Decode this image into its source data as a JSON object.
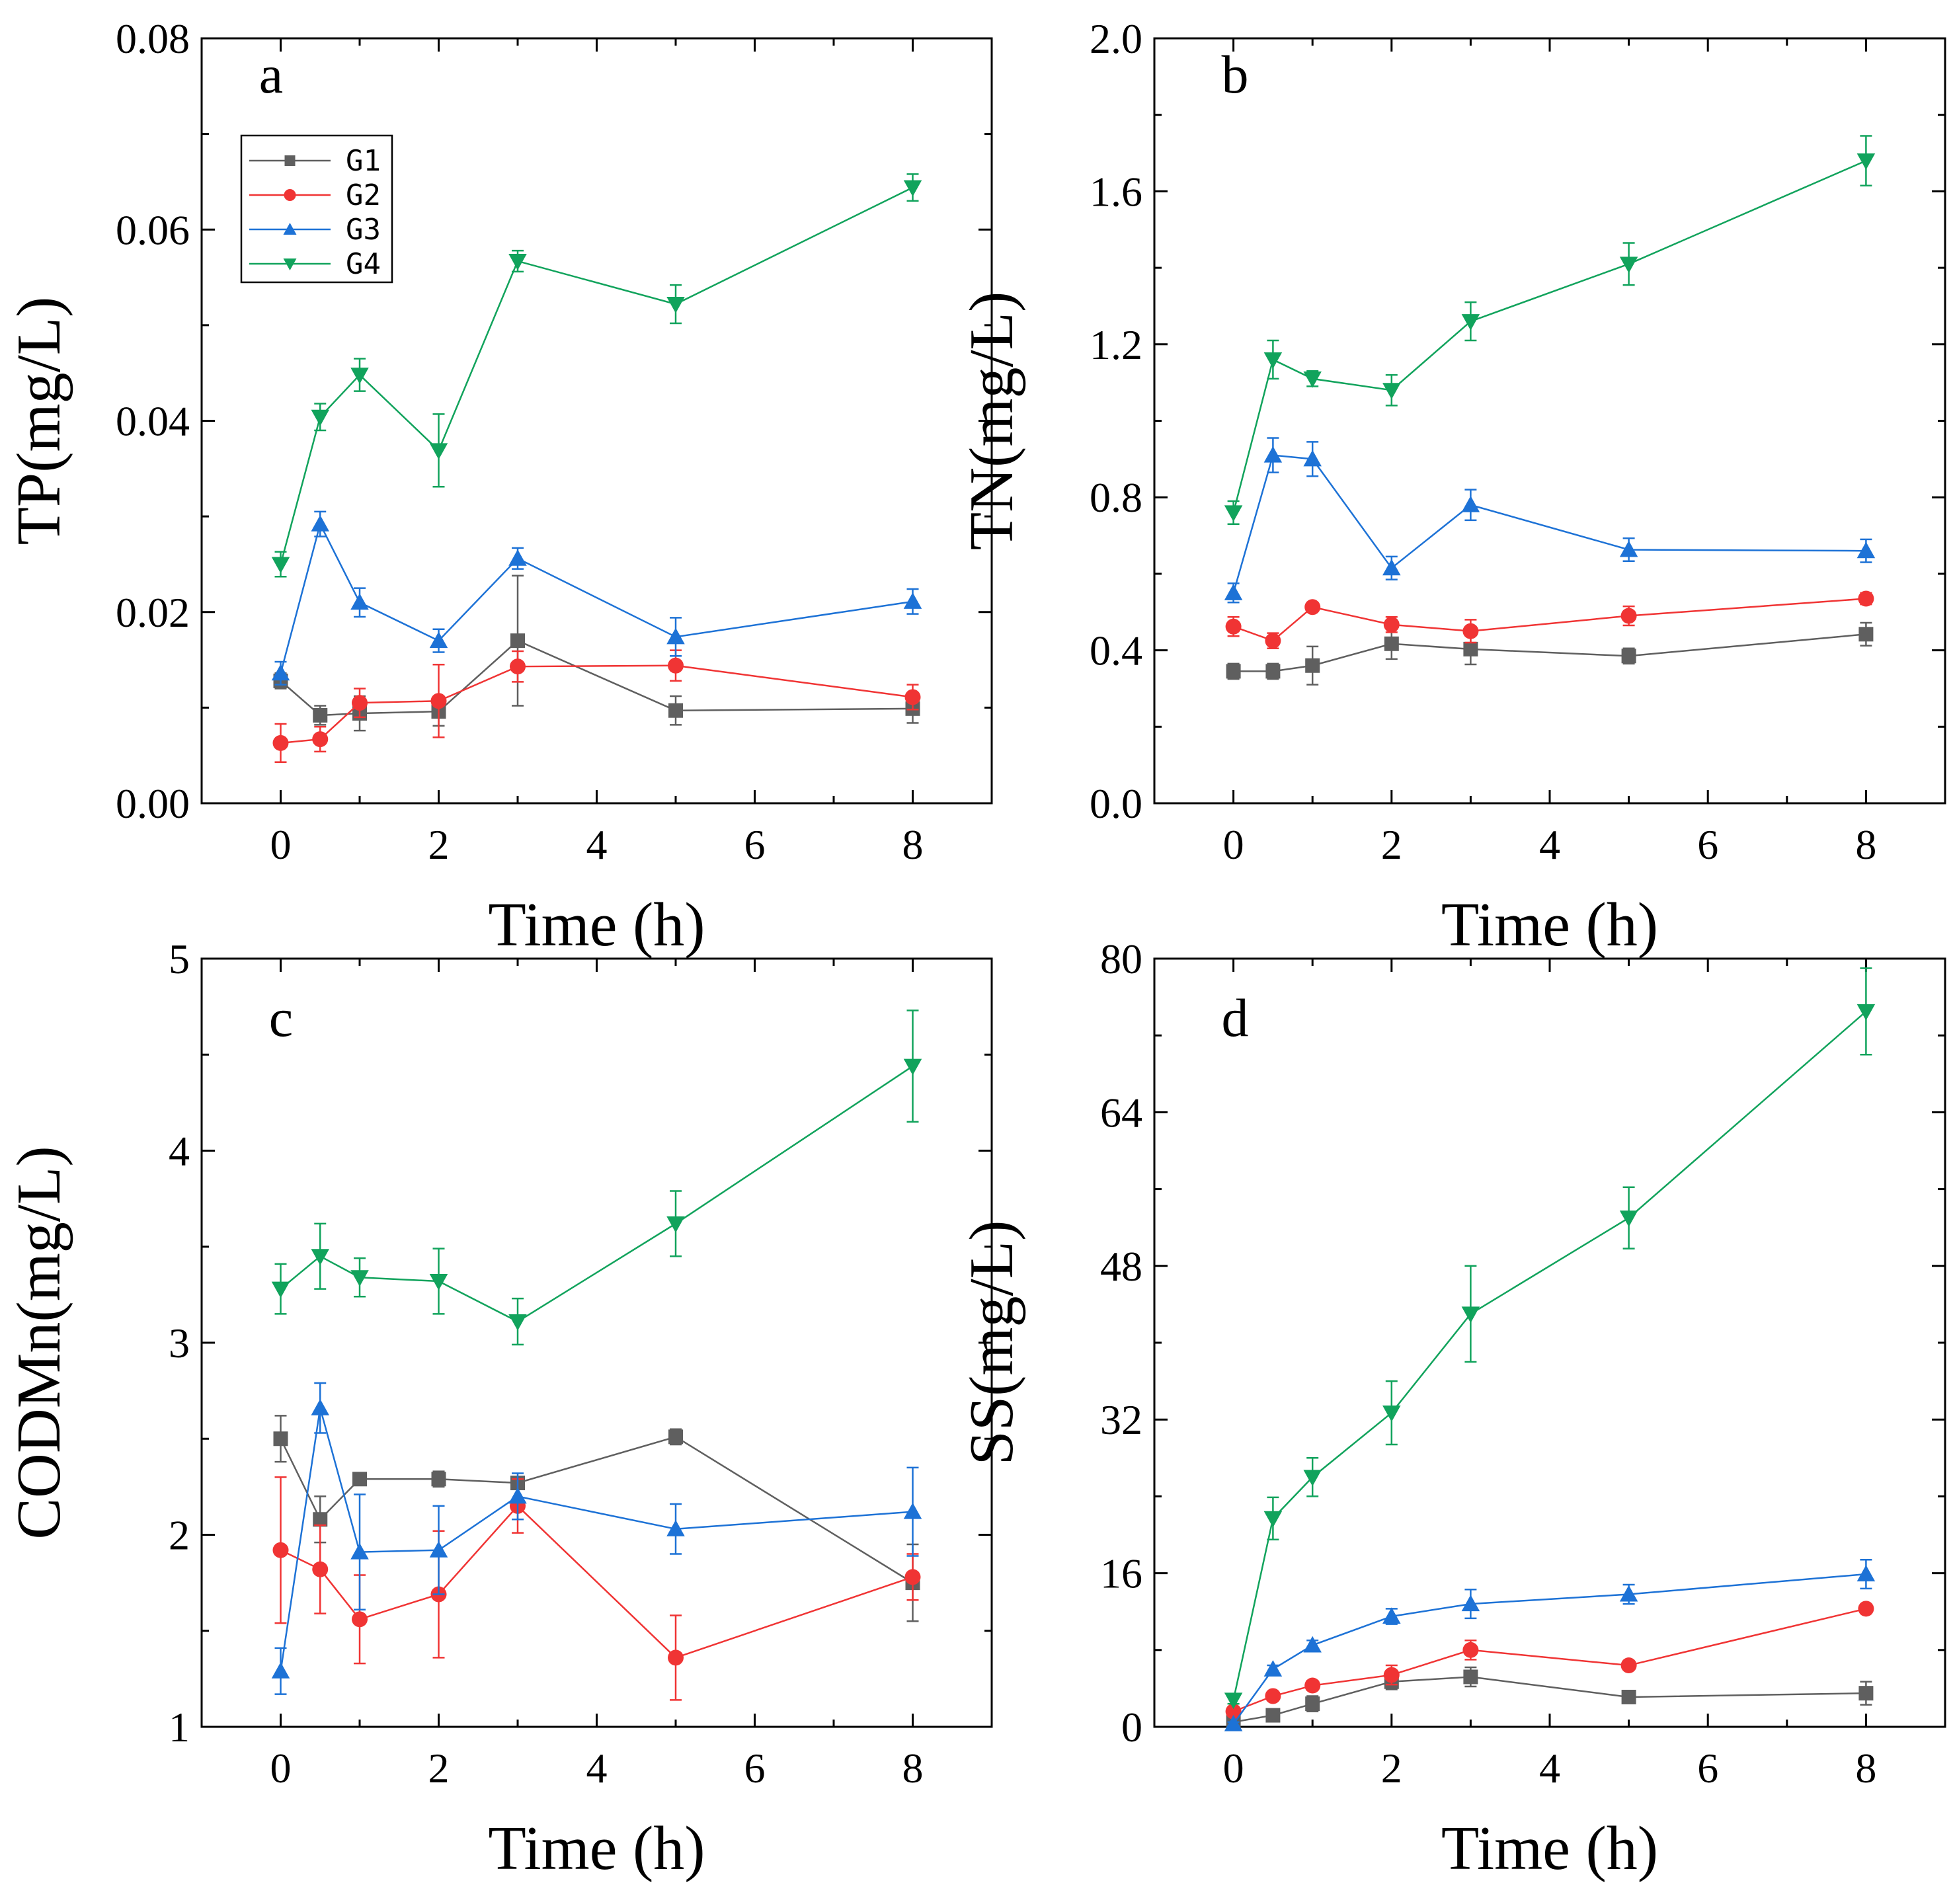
{
  "figure": {
    "colors": {
      "G1": "#5f5f5f",
      "G2": "#f03434",
      "G3": "#1d72d6",
      "G4": "#11a35c"
    },
    "markers": {
      "G1": "square",
      "G2": "circle",
      "G3": "triangle-up",
      "G4": "triangle-down"
    }
  },
  "chart_data": [
    {
      "type": "line",
      "panel": "a",
      "xlabel": "Time (h)",
      "ylabel": "TP(mg/L)",
      "xlim": [
        -1,
        9
      ],
      "ylim": [
        0,
        0.08
      ],
      "xticks": [
        0,
        2,
        4,
        6,
        8
      ],
      "yticks": [
        0.0,
        0.02,
        0.04,
        0.06,
        0.08
      ],
      "ytick_labels": [
        "0.00",
        "0.02",
        "0.04",
        "0.06",
        "0.08"
      ],
      "legend": {
        "position": "top-left",
        "entries": [
          "G1",
          "G2",
          "G3",
          "G4"
        ]
      },
      "x": [
        0,
        0.5,
        1,
        2,
        3,
        5,
        8
      ],
      "series": [
        {
          "name": "G1",
          "values": [
            0.0128,
            0.0092,
            0.0094,
            0.0096,
            0.017,
            0.0097,
            0.0099
          ],
          "errors": [
            0.0008,
            0.001,
            0.0018,
            0.0015,
            0.0068,
            0.0015,
            0.0015
          ]
        },
        {
          "name": "G2",
          "values": [
            0.0063,
            0.0067,
            0.0105,
            0.0107,
            0.0143,
            0.0144,
            0.0111
          ],
          "errors": [
            0.002,
            0.0013,
            0.0015,
            0.0038,
            0.0016,
            0.0016,
            0.0013
          ]
        },
        {
          "name": "G3",
          "values": [
            0.0136,
            0.0292,
            0.021,
            0.017,
            0.0256,
            0.0174,
            0.0211
          ],
          "errors": [
            0.0012,
            0.0013,
            0.0015,
            0.0012,
            0.0011,
            0.002,
            0.0013
          ]
        },
        {
          "name": "G4",
          "values": [
            0.025,
            0.0404,
            0.0448,
            0.0369,
            0.0567,
            0.0522,
            0.0644
          ],
          "errors": [
            0.0013,
            0.0014,
            0.0017,
            0.0038,
            0.0011,
            0.002,
            0.0014
          ]
        }
      ]
    },
    {
      "type": "line",
      "panel": "b",
      "xlabel": "Time (h)",
      "ylabel": "TN(mg/L)",
      "xlim": [
        -1,
        9
      ],
      "ylim": [
        0,
        2.0
      ],
      "xticks": [
        0,
        2,
        4,
        6,
        8
      ],
      "yticks": [
        0.0,
        0.4,
        0.8,
        1.2,
        1.6,
        2.0
      ],
      "ytick_labels": [
        "0.0",
        "0.4",
        "0.8",
        "1.2",
        "1.6",
        "2.0"
      ],
      "x": [
        0,
        0.5,
        1,
        2,
        3,
        5,
        8
      ],
      "series": [
        {
          "name": "G1",
          "values": [
            0.345,
            0.345,
            0.36,
            0.417,
            0.403,
            0.385,
            0.442
          ],
          "errors": [
            0.02,
            0.02,
            0.05,
            0.04,
            0.04,
            0.02,
            0.03
          ]
        },
        {
          "name": "G2",
          "values": [
            0.462,
            0.425,
            0.513,
            0.467,
            0.45,
            0.49,
            0.535
          ],
          "errors": [
            0.025,
            0.02,
            0.01,
            0.02,
            0.03,
            0.025,
            0.015
          ]
        },
        {
          "name": "G3",
          "values": [
            0.55,
            0.91,
            0.9,
            0.615,
            0.78,
            0.663,
            0.66
          ],
          "errors": [
            0.025,
            0.045,
            0.045,
            0.03,
            0.04,
            0.03,
            0.03
          ]
        },
        {
          "name": "G4",
          "values": [
            0.76,
            1.16,
            1.11,
            1.08,
            1.26,
            1.41,
            1.68
          ],
          "errors": [
            0.03,
            0.05,
            0.02,
            0.04,
            0.05,
            0.055,
            0.065
          ]
        }
      ]
    },
    {
      "type": "line",
      "panel": "c",
      "xlabel": "Time (h)",
      "ylabel": "CODMn(mg/L)",
      "xlim": [
        -1,
        9
      ],
      "ylim": [
        1,
        5
      ],
      "xticks": [
        0,
        2,
        4,
        6,
        8
      ],
      "yticks": [
        1,
        2,
        3,
        4,
        5
      ],
      "ytick_labels": [
        "1",
        "2",
        "3",
        "4",
        "5"
      ],
      "x": [
        0,
        0.5,
        1,
        2,
        3,
        5,
        8
      ],
      "series": [
        {
          "name": "G1",
          "values": [
            2.5,
            2.08,
            2.29,
            2.29,
            2.27,
            2.51,
            1.75
          ],
          "errors": [
            0.12,
            0.12,
            0.02,
            0.04,
            0.02,
            0.04,
            0.2
          ]
        },
        {
          "name": "G2",
          "values": [
            1.92,
            1.82,
            1.56,
            1.69,
            2.15,
            1.36,
            1.78
          ],
          "errors": [
            0.38,
            0.23,
            0.23,
            0.33,
            0.14,
            0.22,
            0.12
          ]
        },
        {
          "name": "G3",
          "values": [
            1.29,
            2.66,
            1.91,
            1.92,
            2.2,
            2.03,
            2.12
          ],
          "errors": [
            0.12,
            0.13,
            0.3,
            0.23,
            0.12,
            0.13,
            0.23
          ]
        },
        {
          "name": "G4",
          "values": [
            3.28,
            3.45,
            3.34,
            3.32,
            3.11,
            3.62,
            4.44
          ],
          "errors": [
            0.13,
            0.17,
            0.1,
            0.17,
            0.12,
            0.17,
            0.29
          ]
        }
      ]
    },
    {
      "type": "line",
      "panel": "d",
      "xlabel": "Time (h)",
      "ylabel": "SS(mg/L)",
      "xlim": [
        -1,
        9
      ],
      "ylim": [
        0,
        80
      ],
      "xticks": [
        0,
        2,
        4,
        6,
        8
      ],
      "yticks": [
        0,
        16,
        32,
        48,
        64,
        80
      ],
      "ytick_labels": [
        "0",
        "16",
        "32",
        "48",
        "64",
        "80"
      ],
      "x": [
        0,
        0.5,
        1,
        2,
        3,
        5,
        8
      ],
      "series": [
        {
          "name": "G1",
          "values": [
            0.5,
            1.2,
            2.4,
            4.7,
            5.2,
            3.1,
            3.5
          ],
          "errors": [
            0.3,
            0.4,
            0.8,
            0.8,
            1.0,
            0.6,
            1.2
          ]
        },
        {
          "name": "G2",
          "values": [
            1.6,
            3.2,
            4.3,
            5.4,
            8.0,
            6.4,
            12.3
          ],
          "errors": [
            0.3,
            0.4,
            0.5,
            1.0,
            1.0,
            0.4,
            0.5
          ]
        },
        {
          "name": "G3",
          "values": [
            0.3,
            6.0,
            8.5,
            11.5,
            12.8,
            13.8,
            15.9
          ],
          "errors": [
            0.2,
            0.4,
            0.5,
            0.8,
            1.5,
            1.0,
            1.5
          ]
        },
        {
          "name": "G4",
          "values": [
            2.8,
            21.7,
            26.0,
            32.7,
            43.0,
            53.0,
            74.5
          ],
          "errors": [
            0.4,
            2.2,
            2.0,
            3.3,
            5.0,
            3.2,
            4.5
          ]
        }
      ]
    }
  ]
}
